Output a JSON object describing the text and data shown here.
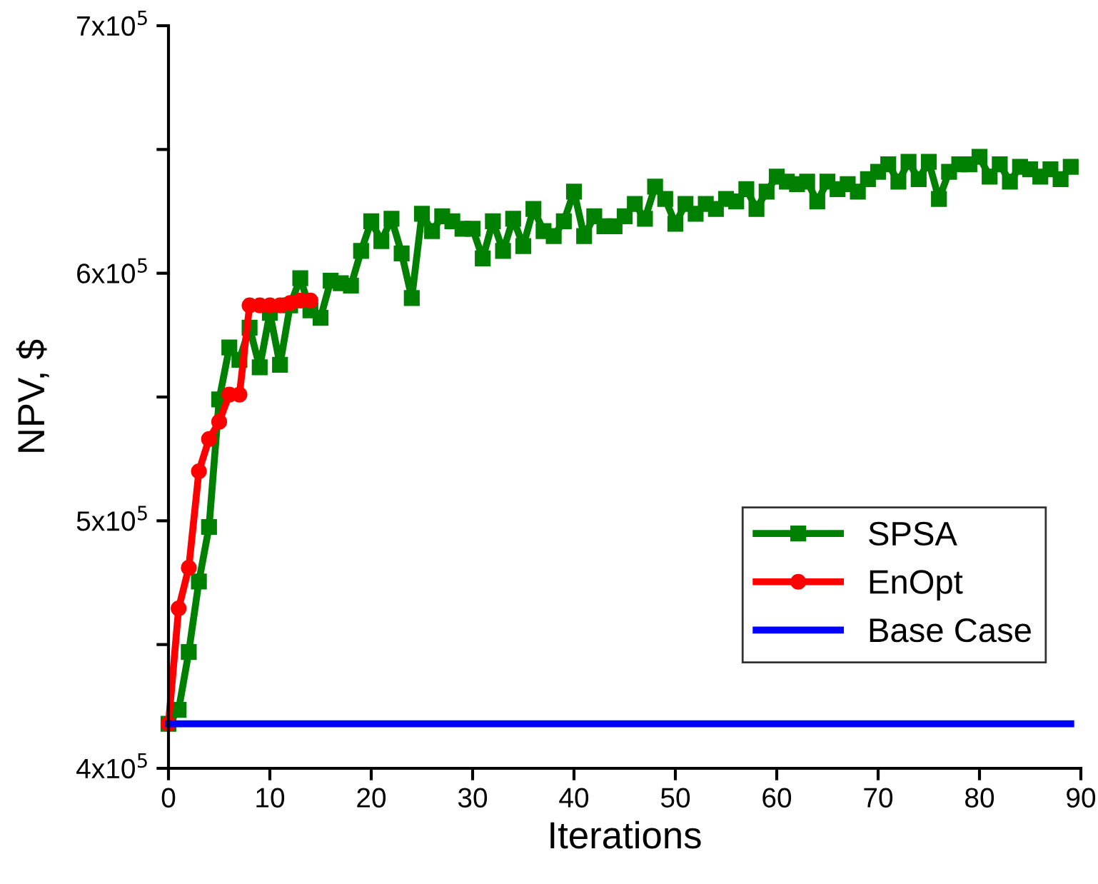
{
  "chart_data": {
    "type": "line",
    "xlabel": "Iterations",
    "ylabel": "NPV, $",
    "xlim": [
      0,
      90
    ],
    "xticks": [
      0,
      10,
      20,
      30,
      40,
      50,
      60,
      70,
      80,
      90
    ],
    "ylim": [
      400000,
      700000
    ],
    "yticks": [
      {
        "value": 400000,
        "label": "4x10$^{5}$"
      },
      {
        "value": 450000,
        "label": null
      },
      {
        "value": 500000,
        "label": "5x10$^{5}$"
      },
      {
        "value": 550000,
        "label": null
      },
      {
        "value": 600000,
        "label": "6x10$^{5}$"
      },
      {
        "value": 650000,
        "label": null
      },
      {
        "value": 700000,
        "label": "7x10$^{5}$"
      }
    ],
    "grid": false,
    "legend": "bottom right",
    "series": [
      {
        "name": "SPSA",
        "color": "#008000",
        "marker": "square",
        "x": [
          0,
          1,
          2,
          3,
          4,
          5,
          6,
          7,
          8,
          9,
          10,
          11,
          12,
          13,
          14,
          15,
          16,
          17,
          18,
          19,
          20,
          21,
          22,
          23,
          24,
          25,
          26,
          27,
          28,
          29,
          30,
          31,
          32,
          33,
          34,
          35,
          36,
          37,
          38,
          39,
          40,
          41,
          42,
          43,
          44,
          45,
          46,
          47,
          48,
          49,
          50,
          51,
          52,
          53,
          54,
          55,
          56,
          57,
          58,
          59,
          60,
          61,
          62,
          63,
          64,
          65,
          66,
          67,
          68,
          69,
          70,
          71,
          72,
          73,
          74,
          75,
          76,
          77,
          78,
          79,
          80,
          81,
          82,
          83,
          84,
          85,
          86,
          87,
          88,
          89
        ],
        "values": [
          418000,
          423600,
          447000,
          475500,
          497500,
          549000,
          570000,
          565000,
          578000,
          562000,
          584000,
          563000,
          587000,
          598000,
          585000,
          582000,
          597000,
          596000,
          595000,
          609000,
          621000,
          613000,
          622000,
          608000,
          590000,
          624000,
          617000,
          623000,
          621000,
          618000,
          618000,
          606000,
          621000,
          609000,
          622000,
          611000,
          626000,
          617000,
          615000,
          621000,
          633000,
          615000,
          623000,
          619000,
          619000,
          623000,
          628000,
          622000,
          635000,
          630000,
          620000,
          628000,
          624000,
          628000,
          626000,
          630000,
          629000,
          634000,
          626000,
          633000,
          639000,
          637000,
          636000,
          637000,
          629000,
          637000,
          634000,
          636000,
          633000,
          638000,
          641000,
          644000,
          637000,
          645000,
          638000,
          645000,
          630000,
          641000,
          644000,
          644000,
          647000,
          639000,
          644000,
          637000,
          643000,
          642000,
          639000,
          642000,
          638000,
          643000
        ]
      },
      {
        "name": "EnOpt",
        "color": "#ff0000",
        "marker": "circle",
        "x": [
          0,
          1,
          2,
          3,
          4,
          5,
          6,
          7,
          8,
          9,
          10,
          11,
          12,
          13,
          14
        ],
        "values": [
          418000,
          464600,
          481000,
          520000,
          533000,
          540000,
          551000,
          551000,
          587000,
          587000,
          587000,
          587000,
          588000,
          589000,
          589000
        ]
      },
      {
        "name": "Base Case",
        "color": "#0000ff",
        "marker": "none",
        "x": [
          0,
          89
        ],
        "values": [
          418000,
          418000
        ]
      }
    ]
  }
}
